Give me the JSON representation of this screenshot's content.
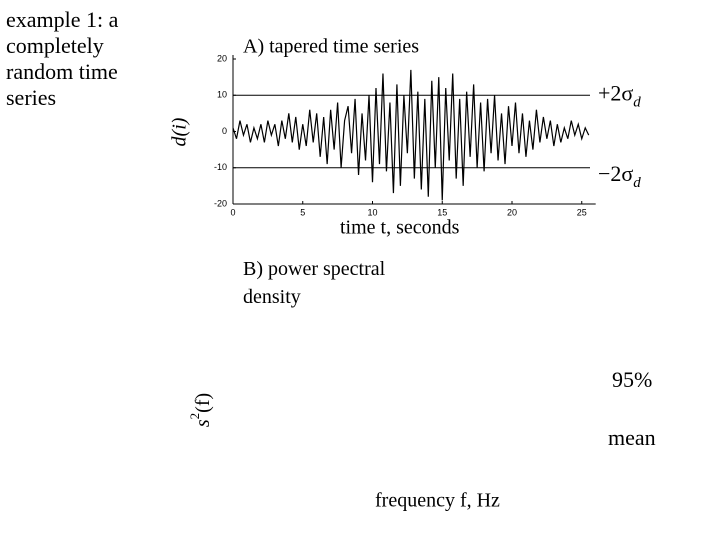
{
  "slide_text": "example 1: a completely random time series",
  "chart_data": [
    {
      "type": "line",
      "title": "A) tapered time series",
      "xlabel": "time t, seconds",
      "ylabel": "d(i)",
      "x": [
        0,
        0.25,
        0.5,
        0.75,
        1,
        1.25,
        1.5,
        1.75,
        2,
        2.25,
        2.5,
        2.75,
        3,
        3.25,
        3.5,
        3.75,
        4,
        4.25,
        4.5,
        4.75,
        5,
        5.25,
        5.5,
        5.75,
        6,
        6.25,
        6.5,
        6.75,
        7,
        7.25,
        7.5,
        7.75,
        8,
        8.25,
        8.5,
        8.75,
        9,
        9.25,
        9.5,
        9.75,
        10,
        10.25,
        10.5,
        10.75,
        11,
        11.25,
        11.5,
        11.75,
        12,
        12.25,
        12.5,
        12.75,
        13,
        13.25,
        13.5,
        13.75,
        14,
        14.25,
        14.5,
        14.75,
        15,
        15.25,
        15.5,
        15.75,
        16,
        16.25,
        16.5,
        16.75,
        17,
        17.25,
        17.5,
        17.75,
        18,
        18.25,
        18.5,
        18.75,
        19,
        19.25,
        19.5,
        19.75,
        20,
        20.25,
        20.5,
        20.75,
        21,
        21.25,
        21.5,
        21.75,
        22,
        22.25,
        22.5,
        22.75,
        23,
        23.25,
        23.5,
        23.75,
        24,
        24.25,
        24.5,
        24.75,
        25,
        25.25,
        25.5
      ],
      "series": [
        {
          "color": "#000000",
          "values": [
            1,
            -2,
            3,
            -1,
            2,
            -3,
            1,
            -2,
            2,
            -3,
            3,
            -1,
            2,
            -4,
            3,
            -2,
            5,
            -3,
            4,
            -5,
            2,
            -4,
            6,
            -3,
            5,
            -7,
            4,
            -9,
            6,
            -5,
            8,
            -10,
            3,
            7,
            -6,
            9,
            -12,
            5,
            -8,
            10,
            -14,
            12,
            -9,
            16,
            -11,
            8,
            -17,
            13,
            -15,
            10,
            -6,
            17,
            -13,
            11,
            -16,
            9,
            -18,
            14,
            -10,
            15,
            -19,
            12,
            -8,
            16,
            -13,
            9,
            -15,
            11,
            -7,
            13,
            -10,
            8,
            -11,
            9,
            -6,
            10,
            -8,
            5,
            -9,
            7,
            -4,
            8,
            -6,
            5,
            -7,
            3,
            -5,
            6,
            -3,
            4,
            -2,
            3,
            -4,
            2,
            -3,
            1,
            -2,
            3,
            -1,
            2,
            -2,
            1,
            -1
          ]
        }
      ],
      "xlim": [
        0,
        26
      ],
      "xticks": [
        0,
        5,
        10,
        15,
        20,
        25
      ],
      "ylim": [
        -20,
        20
      ],
      "yticks": [
        -20,
        -10,
        0,
        10,
        20
      ],
      "reference_lines": [
        {
          "value": 10,
          "label": "+2σ",
          "subscript": "d"
        },
        {
          "value": -10,
          "label": "−2σ",
          "subscript": "d"
        }
      ]
    },
    {
      "type": "line",
      "title": "B) power spectral density",
      "xlabel": "frequency f, Hz",
      "ylabel": [
        "s",
        "2",
        "(f)"
      ],
      "annotations": [
        "95%",
        "mean"
      ]
    }
  ]
}
